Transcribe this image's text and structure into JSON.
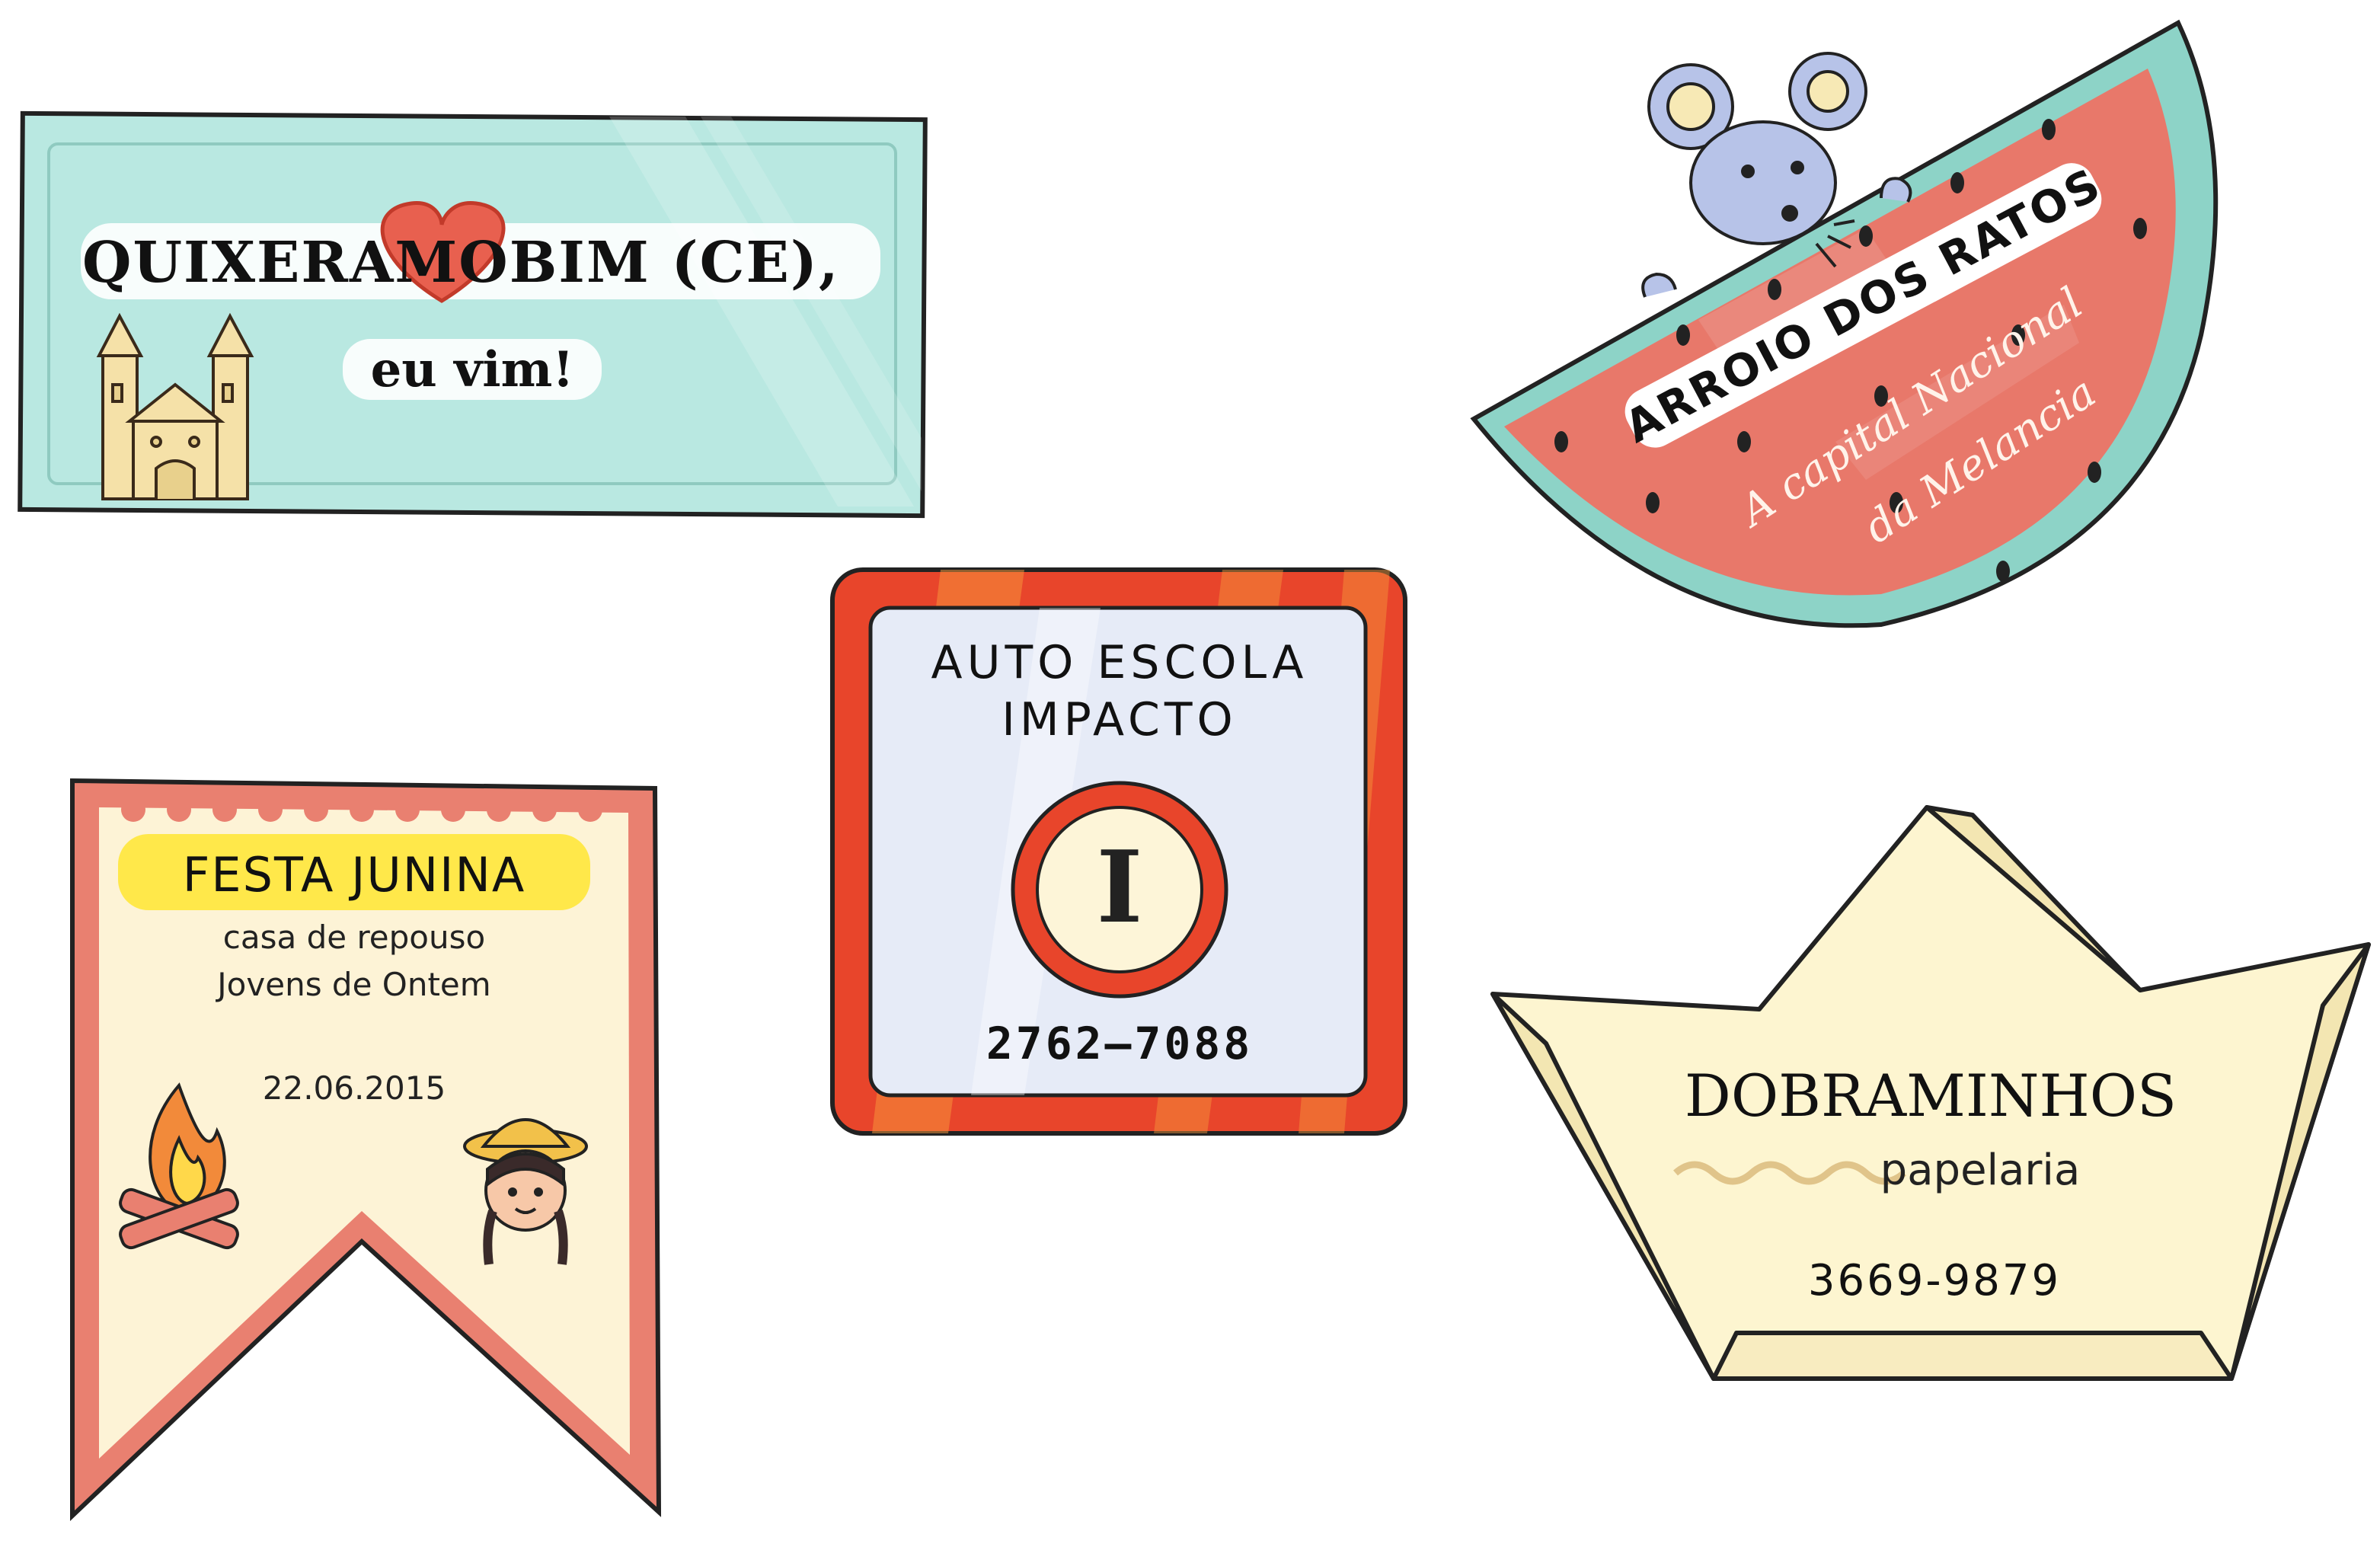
{
  "stickers": {
    "quixeramobim": {
      "title_left": "QUIXER",
      "title_heart": "AMO",
      "title_right": "BIM (CE),",
      "subtitle": "eu vim!",
      "icon": "church-icon",
      "colors": {
        "background": "#b9e8e1",
        "heart": "#e8604f",
        "outline": "#222222"
      }
    },
    "arroio": {
      "title": "ARROIO DOS RATOS",
      "script_line1": "A capital Nacional",
      "script_line2": "da Melancia",
      "icon": "mouse-icon",
      "colors": {
        "flesh": "#e8786a",
        "rind": "#8dd3c7",
        "seed": "#222222"
      }
    },
    "autoescola": {
      "title_line1": "AUTO ESCOLA",
      "title_line2": "IMPACTO",
      "logo_letter": "I",
      "phone": "2762–7088",
      "colors": {
        "frame": "#e8452b",
        "inner": "#e6ebf7",
        "logo_fill": "#fdf5d8"
      }
    },
    "festa": {
      "title": "FESTA JUNINA",
      "line1": "casa de repouso",
      "line2": "Jovens de Ontem",
      "date": "22.06.2015",
      "icons": [
        "bonfire-icon",
        "girl-face-icon"
      ],
      "colors": {
        "background": "#fdf3d6",
        "border": "#e98070",
        "highlight": "#ffe84a"
      }
    },
    "dobraminhos": {
      "title": "DOBRAMINHOS",
      "subtitle": "papelaria",
      "phone": "3669-9879",
      "icon": "paper-boat-icon",
      "colors": {
        "paper": "#fdf5d0",
        "wave": "#e0c48a"
      }
    }
  }
}
